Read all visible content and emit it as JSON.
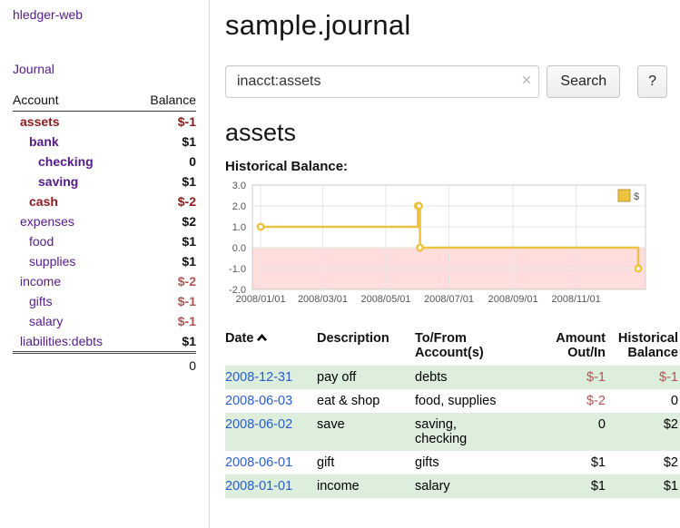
{
  "colors": {
    "purple": "#551a8b",
    "blue_link": "#2a5dc8",
    "neg_strong": "#8c1a1a",
    "neg_soft": "#b05454",
    "green_row": "#ddeedd",
    "chart_line": "#edc240",
    "chart_line_border": "#b8962e",
    "chart_fill_neg": "#ffdddd"
  },
  "sidebar": {
    "app_title": "hledger-web",
    "nav": {
      "journal": "Journal"
    },
    "accounts_table": {
      "headers": {
        "account": "Account",
        "balance": "Balance"
      },
      "rows": [
        {
          "name": "assets",
          "balance": "$-1",
          "indent": 0,
          "bold": true
        },
        {
          "name": "bank",
          "balance": "$1",
          "indent": 1,
          "bold": true
        },
        {
          "name": "checking",
          "balance": "0",
          "indent": 2,
          "bold": true
        },
        {
          "name": "saving",
          "balance": "$1",
          "indent": 2,
          "bold": true
        },
        {
          "name": "cash",
          "balance": "$-2",
          "indent": 1,
          "bold": true
        },
        {
          "name": "expenses",
          "balance": "$2",
          "indent": 0,
          "bold": false
        },
        {
          "name": "food",
          "balance": "$1",
          "indent": 1,
          "bold": false
        },
        {
          "name": "supplies",
          "balance": "$1",
          "indent": 1,
          "bold": false
        },
        {
          "name": "income",
          "balance": "$-2",
          "indent": 0,
          "bold": false
        },
        {
          "name": "gifts",
          "balance": "$-1",
          "indent": 1,
          "bold": false
        },
        {
          "name": "salary",
          "balance": "$-1",
          "indent": 1,
          "bold": false
        },
        {
          "name": "liabilities:debts",
          "balance": "$1",
          "indent": 0,
          "bold": false
        }
      ],
      "total": "0"
    }
  },
  "main": {
    "title": "sample.journal",
    "search": {
      "value": "inacct:assets",
      "clear_icon": "×",
      "search_button": "Search",
      "help_button": "?"
    },
    "account_heading": "assets",
    "chart_label": "Historical Balance:",
    "register": {
      "headers": {
        "date": "Date",
        "description": "Description",
        "tofrom": "To/From\nAccount(s)",
        "amount": "Amount\nOut/In",
        "balance": "Historical\nBalance"
      },
      "rows": [
        {
          "date": "2008-12-31",
          "description": "pay off",
          "tofrom": "debts",
          "amount": "$-1",
          "balance": "$-1"
        },
        {
          "date": "2008-06-03",
          "description": "eat & shop",
          "tofrom": "food, supplies",
          "amount": "$-2",
          "balance": "0"
        },
        {
          "date": "2008-06-02",
          "description": "save",
          "tofrom": "saving,\nchecking",
          "amount": "0",
          "balance": "$2"
        },
        {
          "date": "2008-06-01",
          "description": "gift",
          "tofrom": "gifts",
          "amount": "$1",
          "balance": "$2"
        },
        {
          "date": "2008-01-01",
          "description": "income",
          "tofrom": "salary",
          "amount": "$1",
          "balance": "$1"
        }
      ]
    }
  },
  "chart_data": {
    "type": "line",
    "style": "step",
    "title": "Historical Balance:",
    "series": [
      {
        "name": "$",
        "x": [
          "2008-01-01",
          "2008-06-01",
          "2008-06-02",
          "2008-06-03",
          "2008-12-31"
        ],
        "values": [
          1,
          2,
          2,
          0,
          -1
        ]
      }
    ],
    "y_ticks": [
      "3.0",
      "2.0",
      "1.0",
      "0.0",
      "-1.0",
      "-2.0"
    ],
    "x_ticks": [
      "2008/01/01",
      "2008/03/01",
      "2008/05/01",
      "2008/07/01",
      "2008/09/01",
      "2008/11/01"
    ],
    "ylim": [
      -2,
      3
    ],
    "xlim": [
      "2007-12-24",
      "2009-01-07"
    ],
    "legend": {
      "position": "top-right",
      "entries": [
        "$"
      ]
    },
    "grid": true,
    "negative_region_fill": true
  }
}
